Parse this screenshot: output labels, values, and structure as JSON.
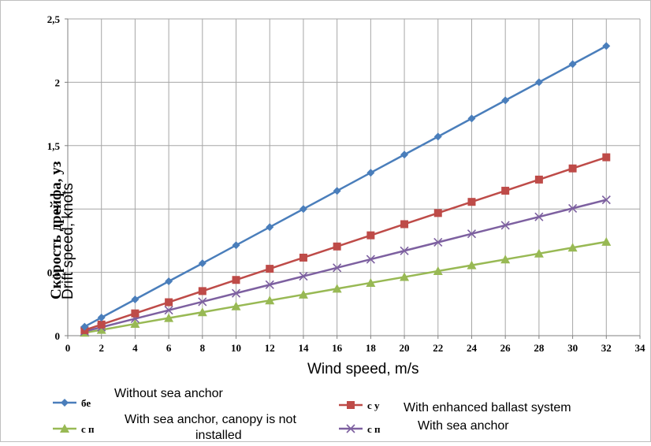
{
  "chart_data": {
    "type": "line",
    "xlabel": "Wind speed, m/s",
    "ylabel": "Drift speed, knots",
    "ylabel_underlay": "Скорость дрейфа, уз",
    "xlim": [
      0,
      34
    ],
    "ylim": [
      0,
      2.5
    ],
    "x_ticks": [
      0,
      2,
      4,
      6,
      8,
      10,
      12,
      14,
      16,
      18,
      20,
      22,
      24,
      26,
      28,
      30,
      32,
      34
    ],
    "y_ticks": [
      {
        "value": 0,
        "label": "0"
      },
      {
        "value": 0.5,
        "label": "0,5"
      },
      {
        "value": 1,
        "label": "1"
      },
      {
        "value": 1.5,
        "label": "1,5"
      },
      {
        "value": 2,
        "label": "2"
      },
      {
        "value": 2.5,
        "label": "2,5"
      }
    ],
    "grid": true,
    "legend_position": "bottom",
    "x": [
      1,
      2,
      4,
      6,
      8,
      10,
      12,
      14,
      16,
      18,
      20,
      22,
      24,
      26,
      28,
      30,
      32
    ],
    "series": [
      {
        "name": "Without sea anchor",
        "underlay_label": "бе",
        "color": "#4a7ebb",
        "marker": "diamond",
        "values": [
          0.071,
          0.143,
          0.286,
          0.429,
          0.571,
          0.714,
          0.857,
          1.0,
          1.143,
          1.286,
          1.429,
          1.571,
          1.714,
          1.857,
          2.0,
          2.143,
          2.286
        ]
      },
      {
        "name": "With enhanced ballast system",
        "underlay_label": "с у",
        "color": "#be4b48",
        "marker": "square",
        "values": [
          0.044,
          0.088,
          0.176,
          0.264,
          0.352,
          0.44,
          0.528,
          0.616,
          0.704,
          0.792,
          0.88,
          0.968,
          1.056,
          1.144,
          1.232,
          1.32,
          1.408
        ]
      },
      {
        "name": "With sea anchor, canopy is not installed",
        "underlay_label": "с п",
        "color": "#98b954",
        "marker": "triangle",
        "values": [
          0.023,
          0.046,
          0.093,
          0.139,
          0.185,
          0.232,
          0.278,
          0.324,
          0.371,
          0.417,
          0.463,
          0.51,
          0.556,
          0.602,
          0.648,
          0.695,
          0.741
        ]
      },
      {
        "name": "With sea anchor",
        "underlay_label": "с п",
        "color": "#7d60a0",
        "marker": "x",
        "values": [
          0.034,
          0.067,
          0.134,
          0.201,
          0.268,
          0.335,
          0.402,
          0.469,
          0.536,
          0.603,
          0.67,
          0.737,
          0.804,
          0.871,
          0.938,
          1.005,
          1.072
        ]
      }
    ]
  }
}
